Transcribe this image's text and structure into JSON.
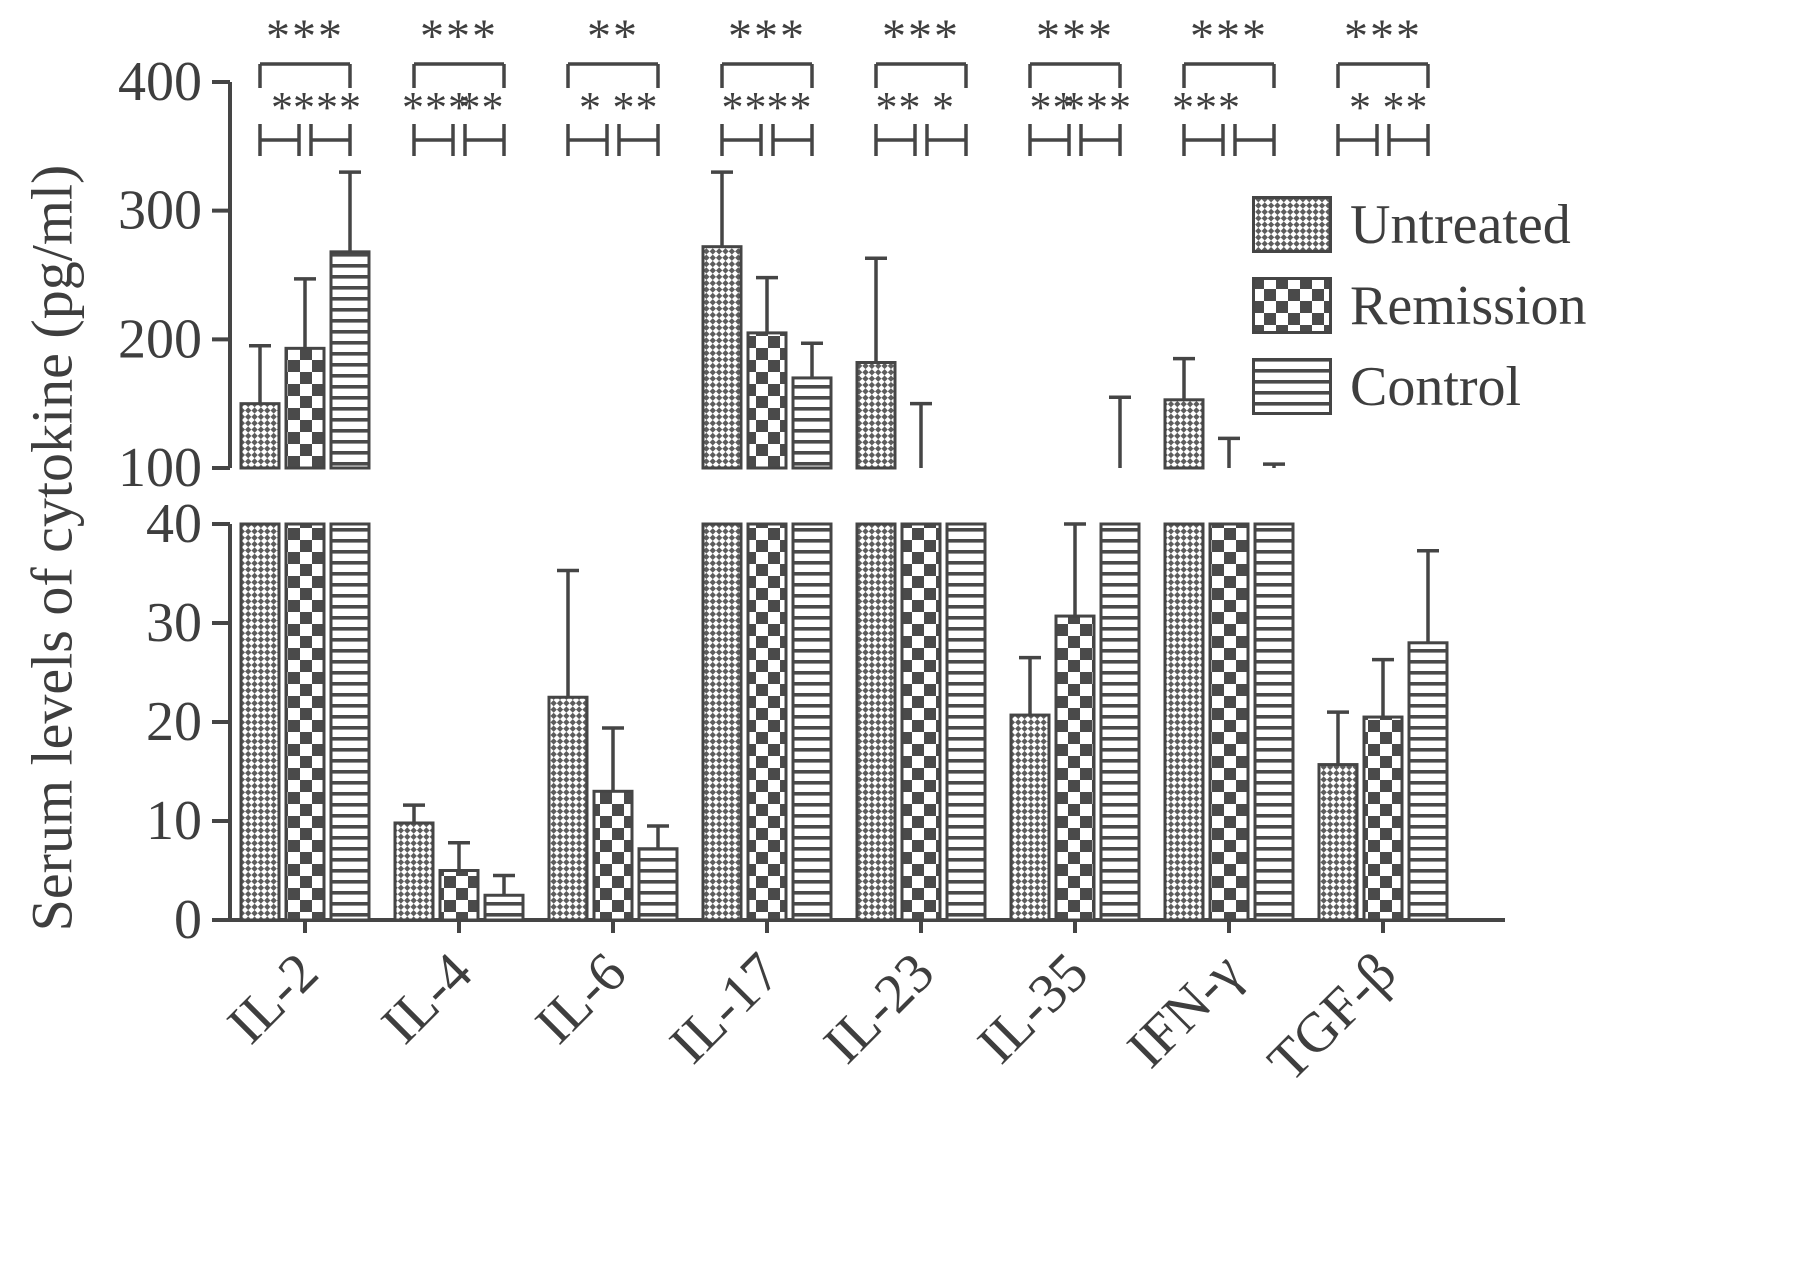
{
  "figure_name": "serum-cytokine-levels-bar-chart",
  "chart_data": {
    "type": "bar",
    "title": "",
    "xlabel": "",
    "ylabel": "Serum levels of cytokine (pg/ml)",
    "legend_position": "right",
    "grid": false,
    "axis_break": {
      "lower_range": [
        0,
        40
      ],
      "upper_range": [
        100,
        400
      ]
    },
    "lower_ticks": [
      0,
      10,
      20,
      30,
      40
    ],
    "upper_ticks": [
      100,
      200,
      300,
      400
    ],
    "categories": [
      "IL-2",
      "IL-4",
      "IL-6",
      "IL-17",
      "IL-23",
      "IL-35",
      "IFN-γ",
      "TGF-β"
    ],
    "series": [
      {
        "name": "Untreated",
        "pattern": "fine-check",
        "values": [
          150,
          9.8,
          22.5,
          272,
          182,
          20.7,
          153,
          15.7
        ],
        "errors": [
          45,
          1.8,
          12.8,
          58,
          81,
          5.8,
          32,
          5.3
        ]
      },
      {
        "name": "Remission",
        "pattern": "checkerboard",
        "values": [
          193,
          5.0,
          13.0,
          205,
          75,
          30.7,
          95,
          20.5
        ],
        "errors": [
          54,
          2.8,
          6.4,
          43,
          75,
          9.5,
          28,
          5.8
        ]
      },
      {
        "name": "Control",
        "pattern": "h-lines",
        "values": [
          268,
          2.5,
          7.2,
          170,
          70,
          95,
          85,
          28
        ],
        "errors": [
          62,
          2.0,
          2.3,
          27,
          25,
          60,
          18,
          9.3
        ]
      }
    ],
    "significance": [
      {
        "overall": "***",
        "left": "*",
        "right": "***"
      },
      {
        "overall": "***",
        "left": "***",
        "right": "**"
      },
      {
        "overall": "**",
        "left": "*",
        "right": "**"
      },
      {
        "overall": "***",
        "left": "**",
        "right": "**"
      },
      {
        "overall": "***",
        "left": "**",
        "right": "*"
      },
      {
        "overall": "***",
        "left": "**",
        "right": "***"
      },
      {
        "overall": "***",
        "left": "***",
        "right": ""
      },
      {
        "overall": "***",
        "left": "*",
        "right": "**"
      }
    ],
    "colors": {
      "ink": "#454545",
      "pattern_ink": "#4f4f4f",
      "background": "#ffffff"
    }
  }
}
